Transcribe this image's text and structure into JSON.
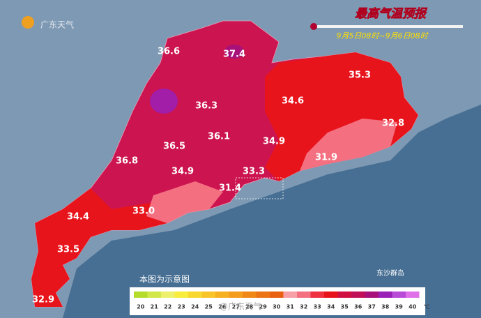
{
  "header": {
    "logo_text": "广东天气",
    "title": "最高气温预报",
    "period": "9月5日08时~9月6日08时"
  },
  "labels": [
    "36.6",
    "37.4",
    "35.3",
    "34.6",
    "36.3",
    "32.8",
    "36.1",
    "36.5",
    "34.9",
    "31.9",
    "36.8",
    "34.9",
    "33.3",
    "31.4",
    "34.4",
    "33.0",
    "33.5",
    "32.9"
  ],
  "note": "本图为示意图",
  "island": "东沙群岛",
  "watermark": "@广东天气",
  "legend": {
    "steps": [
      {
        "value": 20,
        "color": "#b4dc2a"
      },
      {
        "value": 21,
        "color": "#d2e84a"
      },
      {
        "value": 22,
        "color": "#ecf06a"
      },
      {
        "value": 23,
        "color": "#f8ec3c"
      },
      {
        "value": 24,
        "color": "#f8d830"
      },
      {
        "value": 25,
        "color": "#f8c428"
      },
      {
        "value": 26,
        "color": "#f6b020"
      },
      {
        "value": 27,
        "color": "#f49c1c"
      },
      {
        "value": 28,
        "color": "#f08818"
      },
      {
        "value": 29,
        "color": "#ec7414"
      },
      {
        "value": 30,
        "color": "#e86010"
      },
      {
        "value": 31,
        "color": "#f8a0a8"
      },
      {
        "value": 32,
        "color": "#f47080"
      },
      {
        "value": 33,
        "color": "#ee3040"
      },
      {
        "value": 34,
        "color": "#e8141c"
      },
      {
        "value": 35,
        "color": "#d01040"
      },
      {
        "value": 36,
        "color": "#c01058"
      },
      {
        "value": 37,
        "color": "#a8107a"
      },
      {
        "value": 38,
        "color": "#9a20b8"
      },
      {
        "value": 39,
        "color": "#b84cd8"
      },
      {
        "value": 40,
        "color": "#e070e8"
      }
    ],
    "unit": "℃"
  }
}
